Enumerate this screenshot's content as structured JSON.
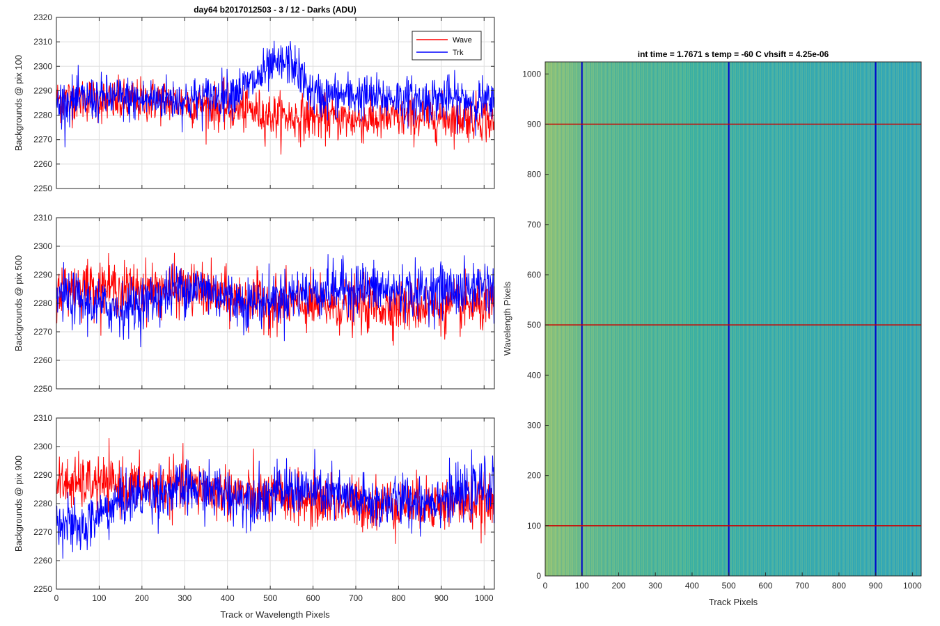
{
  "figure_title": "day64 b2017012503 - 3 / 12 - Darks (ADU)",
  "chart_data": [
    {
      "type": "line",
      "panel": "top",
      "title": "day64 b2017012503 - 3 / 12 - Darks (ADU)",
      "xlabel": "",
      "ylabel": "Backgrounds @ pix 100",
      "xlim": [
        0,
        1024
      ],
      "ylim": [
        2250,
        2320
      ],
      "xticks": [
        "0",
        "100",
        "200",
        "300",
        "400",
        "500",
        "600",
        "700",
        "800",
        "900",
        "1000"
      ],
      "yticks": [
        "2250",
        "2260",
        "2270",
        "2280",
        "2290",
        "2300",
        "2310",
        "2320"
      ],
      "grid": true,
      "legend": {
        "placement": "top-right",
        "entries": [
          "Wave",
          "Trk"
        ]
      },
      "series": [
        {
          "name": "Wave",
          "color": "#ff0000",
          "x": [
            0,
            50,
            100,
            150,
            200,
            250,
            300,
            350,
            400,
            450,
            500,
            550,
            600,
            650,
            700,
            750,
            800,
            850,
            900,
            950,
            1000,
            1024
          ],
          "values": [
            2286,
            2287,
            2286,
            2285,
            2286,
            2286,
            2285,
            2284,
            2283,
            2282,
            2280,
            2279,
            2279,
            2279,
            2278,
            2278,
            2279,
            2279,
            2279,
            2279,
            2279,
            2276
          ]
        },
        {
          "name": "Trk",
          "color": "#0000ff",
          "x": [
            0,
            50,
            100,
            150,
            200,
            250,
            300,
            350,
            400,
            450,
            500,
            550,
            600,
            650,
            700,
            750,
            800,
            850,
            900,
            950,
            1000,
            1024
          ],
          "values": [
            2285,
            2286,
            2287,
            2287,
            2286,
            2287,
            2286,
            2287,
            2289,
            2292,
            2299,
            2302,
            2288,
            2288,
            2288,
            2287,
            2287,
            2286,
            2287,
            2286,
            2286,
            2283
          ]
        }
      ]
    },
    {
      "type": "line",
      "panel": "middle",
      "xlabel": "",
      "ylabel": "Backgrounds @ pix 500",
      "xlim": [
        0,
        1024
      ],
      "ylim": [
        2250,
        2310
      ],
      "xticks": [
        "0",
        "100",
        "200",
        "300",
        "400",
        "500",
        "600",
        "700",
        "800",
        "900",
        "1000"
      ],
      "yticks": [
        "2250",
        "2260",
        "2270",
        "2280",
        "2290",
        "2300",
        "2310"
      ],
      "grid": true,
      "series": [
        {
          "name": "Wave",
          "color": "#ff0000",
          "x": [
            0,
            50,
            100,
            150,
            200,
            250,
            300,
            350,
            400,
            450,
            500,
            550,
            600,
            650,
            700,
            750,
            800,
            850,
            900,
            950,
            1000,
            1024
          ],
          "values": [
            2285,
            2286,
            2286,
            2285,
            2285,
            2285,
            2285,
            2284,
            2282,
            2281,
            2280,
            2280,
            2279,
            2279,
            2279,
            2279,
            2279,
            2279,
            2279,
            2279,
            2279,
            2278
          ]
        },
        {
          "name": "Trk",
          "color": "#0000ff",
          "x": [
            0,
            50,
            100,
            150,
            200,
            250,
            300,
            350,
            400,
            450,
            500,
            550,
            600,
            650,
            700,
            750,
            800,
            850,
            900,
            950,
            1000,
            1024
          ],
          "values": [
            2283,
            2281,
            2279,
            2278,
            2280,
            2283,
            2286,
            2285,
            2282,
            2280,
            2281,
            2283,
            2284,
            2285,
            2286,
            2285,
            2284,
            2284,
            2285,
            2284,
            2287,
            2284
          ]
        }
      ]
    },
    {
      "type": "line",
      "panel": "bottom",
      "xlabel": "Track or Wavelength Pixels",
      "ylabel": "Backgrounds @ pix 900",
      "xlim": [
        0,
        1024
      ],
      "ylim": [
        2250,
        2310
      ],
      "xticks": [
        "0",
        "100",
        "200",
        "300",
        "400",
        "500",
        "600",
        "700",
        "800",
        "900",
        "1000"
      ],
      "yticks": [
        "2250",
        "2260",
        "2270",
        "2280",
        "2290",
        "2300",
        "2310"
      ],
      "grid": true,
      "series": [
        {
          "name": "Wave",
          "color": "#ff0000",
          "x": [
            0,
            50,
            100,
            150,
            200,
            250,
            300,
            350,
            400,
            450,
            500,
            550,
            600,
            650,
            700,
            750,
            800,
            850,
            900,
            950,
            1000,
            1024
          ],
          "values": [
            2287,
            2287,
            2287,
            2286,
            2286,
            2286,
            2286,
            2285,
            2284,
            2283,
            2282,
            2282,
            2281,
            2281,
            2280,
            2280,
            2280,
            2280,
            2280,
            2280,
            2280,
            2279
          ]
        },
        {
          "name": "Trk",
          "color": "#0000ff",
          "x": [
            0,
            50,
            100,
            150,
            200,
            250,
            300,
            350,
            400,
            450,
            500,
            550,
            600,
            650,
            700,
            750,
            800,
            850,
            900,
            950,
            1000,
            1024
          ],
          "values": [
            2276,
            2270,
            2276,
            2281,
            2283,
            2284,
            2285,
            2285,
            2283,
            2282,
            2283,
            2285,
            2284,
            2283,
            2281,
            2280,
            2281,
            2281,
            2282,
            2283,
            2286,
            2286
          ]
        }
      ]
    },
    {
      "type": "heatmap",
      "panel": "right",
      "title": "int time = 1.7671 s   temp = -60 C   vhsift = 4.25e-06",
      "xlabel": "Track Pixels",
      "ylabel": "Wavelength Pixels",
      "xlim": [
        0,
        1024
      ],
      "ylim": [
        0,
        1024
      ],
      "xticks": [
        "0",
        "100",
        "200",
        "300",
        "400",
        "500",
        "600",
        "700",
        "800",
        "900",
        "1000"
      ],
      "yticks": [
        "0",
        "100",
        "200",
        "300",
        "400",
        "500",
        "600",
        "700",
        "800",
        "900",
        "1000"
      ],
      "colormap": [
        "#2aa0c8",
        "#3cb3a0",
        "#a8c86a"
      ],
      "column_profile": {
        "x": [
          0,
          50,
          100,
          150,
          200,
          250,
          300,
          350,
          400,
          450,
          500,
          550,
          600,
          650,
          700,
          750,
          800,
          850,
          900,
          950,
          1000,
          1024
        ],
        "values": [
          0.9,
          0.8,
          0.7,
          0.65,
          0.6,
          0.58,
          0.55,
          0.55,
          0.5,
          0.45,
          0.42,
          0.38,
          0.35,
          0.33,
          0.3,
          0.3,
          0.28,
          0.25,
          0.25,
          0.22,
          0.2,
          0.2
        ]
      },
      "vertical_markers": {
        "color": "#0000cc",
        "x": [
          100,
          500,
          900
        ]
      },
      "horizontal_markers": {
        "color": "#cc0000",
        "y": [
          100,
          500,
          900
        ]
      }
    }
  ]
}
